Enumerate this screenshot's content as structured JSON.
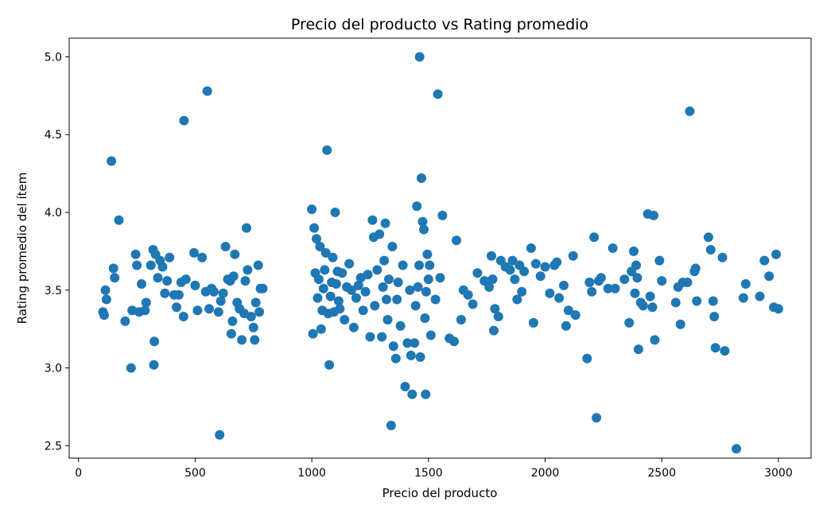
{
  "chart_data": {
    "type": "scatter",
    "title": "Precio del producto vs Rating promedio",
    "xlabel": "Precio del producto",
    "ylabel": "Rating promedio del ítem",
    "xlim": [
      -40,
      3140
    ],
    "ylim": [
      2.42,
      5.12
    ],
    "xticks": [
      0,
      500,
      1000,
      1500,
      2000,
      2500,
      3000
    ],
    "xtick_labels": [
      "0",
      "500",
      "1000",
      "1500",
      "2000",
      "2500",
      "3000"
    ],
    "yticks": [
      2.5,
      3.0,
      3.5,
      4.0,
      4.5,
      5.0
    ],
    "ytick_labels": [
      "2.5",
      "3.0",
      "3.5",
      "4.0",
      "4.5",
      "5.0"
    ],
    "grid": false,
    "marker_color": "#1f77b4",
    "points": [
      [
        141,
        4.33
      ],
      [
        452,
        4.59
      ],
      [
        552,
        4.78
      ],
      [
        173,
        3.95
      ],
      [
        105,
        3.36
      ],
      [
        115,
        3.5
      ],
      [
        110,
        3.34
      ],
      [
        120,
        3.44
      ],
      [
        150,
        3.64
      ],
      [
        155,
        3.58
      ],
      [
        200,
        3.3
      ],
      [
        225,
        3.0
      ],
      [
        230,
        3.37
      ],
      [
        245,
        3.73
      ],
      [
        250,
        3.66
      ],
      [
        260,
        3.36
      ],
      [
        270,
        3.54
      ],
      [
        285,
        3.37
      ],
      [
        290,
        3.42
      ],
      [
        310,
        3.66
      ],
      [
        320,
        3.76
      ],
      [
        330,
        3.73
      ],
      [
        325,
        3.17
      ],
      [
        323,
        3.02
      ],
      [
        340,
        3.58
      ],
      [
        350,
        3.69
      ],
      [
        360,
        3.65
      ],
      [
        370,
        3.48
      ],
      [
        380,
        3.56
      ],
      [
        390,
        3.71
      ],
      [
        410,
        3.47
      ],
      [
        420,
        3.39
      ],
      [
        430,
        3.47
      ],
      [
        440,
        3.55
      ],
      [
        450,
        3.33
      ],
      [
        460,
        3.57
      ],
      [
        495,
        3.74
      ],
      [
        500,
        3.53
      ],
      [
        510,
        3.37
      ],
      [
        530,
        3.71
      ],
      [
        545,
        3.49
      ],
      [
        560,
        3.38
      ],
      [
        570,
        3.51
      ],
      [
        580,
        3.49
      ],
      [
        600,
        3.36
      ],
      [
        605,
        2.57
      ],
      [
        610,
        3.43
      ],
      [
        620,
        3.48
      ],
      [
        630,
        3.78
      ],
      [
        640,
        3.57
      ],
      [
        650,
        3.56
      ],
      [
        655,
        3.22
      ],
      [
        660,
        3.3
      ],
      [
        665,
        3.59
      ],
      [
        670,
        3.73
      ],
      [
        680,
        3.42
      ],
      [
        690,
        3.38
      ],
      [
        700,
        3.18
      ],
      [
        710,
        3.35
      ],
      [
        715,
        3.56
      ],
      [
        720,
        3.9
      ],
      [
        725,
        3.63
      ],
      [
        740,
        3.33
      ],
      [
        750,
        3.26
      ],
      [
        755,
        3.18
      ],
      [
        760,
        3.42
      ],
      [
        770,
        3.66
      ],
      [
        775,
        3.36
      ],
      [
        780,
        3.51
      ],
      [
        790,
        3.51
      ],
      [
        1000,
        4.02
      ],
      [
        1005,
        3.22
      ],
      [
        1010,
        3.9
      ],
      [
        1015,
        3.61
      ],
      [
        1020,
        3.83
      ],
      [
        1025,
        3.45
      ],
      [
        1030,
        3.57
      ],
      [
        1035,
        3.78
      ],
      [
        1040,
        3.25
      ],
      [
        1045,
        3.37
      ],
      [
        1050,
        3.51
      ],
      [
        1055,
        3.63
      ],
      [
        1060,
        3.74
      ],
      [
        1065,
        4.4
      ],
      [
        1070,
        3.35
      ],
      [
        1075,
        3.02
      ],
      [
        1080,
        3.46
      ],
      [
        1085,
        3.55
      ],
      [
        1090,
        3.71
      ],
      [
        1095,
        3.36
      ],
      [
        1100,
        4.0
      ],
      [
        1105,
        3.54
      ],
      [
        1110,
        3.62
      ],
      [
        1115,
        3.43
      ],
      [
        1120,
        3.38
      ],
      [
        1130,
        3.61
      ],
      [
        1140,
        3.31
      ],
      [
        1150,
        3.52
      ],
      [
        1160,
        3.67
      ],
      [
        1170,
        3.5
      ],
      [
        1180,
        3.26
      ],
      [
        1190,
        3.45
      ],
      [
        1200,
        3.53
      ],
      [
        1210,
        3.58
      ],
      [
        1220,
        3.37
      ],
      [
        1230,
        3.49
      ],
      [
        1240,
        3.6
      ],
      [
        1250,
        3.2
      ],
      [
        1260,
        3.95
      ],
      [
        1265,
        3.84
      ],
      [
        1270,
        3.4
      ],
      [
        1280,
        3.63
      ],
      [
        1290,
        3.86
      ],
      [
        1300,
        3.2
      ],
      [
        1305,
        3.52
      ],
      [
        1310,
        3.69
      ],
      [
        1315,
        3.93
      ],
      [
        1320,
        3.44
      ],
      [
        1325,
        3.31
      ],
      [
        1330,
        3.57
      ],
      [
        1340,
        2.63
      ],
      [
        1345,
        3.78
      ],
      [
        1350,
        3.14
      ],
      [
        1360,
        3.06
      ],
      [
        1365,
        3.44
      ],
      [
        1370,
        3.55
      ],
      [
        1380,
        3.27
      ],
      [
        1390,
        3.66
      ],
      [
        1400,
        2.88
      ],
      [
        1410,
        3.16
      ],
      [
        1420,
        3.5
      ],
      [
        1425,
        3.08
      ],
      [
        1430,
        2.83
      ],
      [
        1440,
        3.16
      ],
      [
        1445,
        3.4
      ],
      [
        1450,
        4.04
      ],
      [
        1455,
        3.52
      ],
      [
        1460,
        3.66
      ],
      [
        1462,
        5.0
      ],
      [
        1465,
        3.07
      ],
      [
        1470,
        4.22
      ],
      [
        1475,
        3.94
      ],
      [
        1480,
        3.89
      ],
      [
        1485,
        3.32
      ],
      [
        1488,
        2.83
      ],
      [
        1490,
        3.49
      ],
      [
        1495,
        3.73
      ],
      [
        1500,
        3.57
      ],
      [
        1505,
        3.66
      ],
      [
        1510,
        3.21
      ],
      [
        1530,
        3.44
      ],
      [
        1540,
        4.76
      ],
      [
        1550,
        3.58
      ],
      [
        1560,
        3.98
      ],
      [
        1590,
        3.19
      ],
      [
        1610,
        3.17
      ],
      [
        1620,
        3.82
      ],
      [
        1640,
        3.31
      ],
      [
        1650,
        3.5
      ],
      [
        1670,
        3.47
      ],
      [
        1690,
        3.41
      ],
      [
        1710,
        3.61
      ],
      [
        1740,
        3.56
      ],
      [
        1760,
        3.52
      ],
      [
        1770,
        3.72
      ],
      [
        1775,
        3.57
      ],
      [
        1780,
        3.24
      ],
      [
        1785,
        3.38
      ],
      [
        1800,
        3.33
      ],
      [
        1810,
        3.69
      ],
      [
        1830,
        3.65
      ],
      [
        1850,
        3.63
      ],
      [
        1860,
        3.69
      ],
      [
        1870,
        3.57
      ],
      [
        1880,
        3.44
      ],
      [
        1890,
        3.66
      ],
      [
        1900,
        3.49
      ],
      [
        1910,
        3.62
      ],
      [
        1940,
        3.77
      ],
      [
        1950,
        3.29
      ],
      [
        1960,
        3.67
      ],
      [
        1980,
        3.59
      ],
      [
        2000,
        3.65
      ],
      [
        2020,
        3.48
      ],
      [
        2040,
        3.66
      ],
      [
        2050,
        3.68
      ],
      [
        2060,
        3.45
      ],
      [
        2080,
        3.53
      ],
      [
        2090,
        3.27
      ],
      [
        2100,
        3.37
      ],
      [
        2120,
        3.72
      ],
      [
        2130,
        3.34
      ],
      [
        2180,
        3.06
      ],
      [
        2190,
        3.55
      ],
      [
        2200,
        3.49
      ],
      [
        2210,
        3.84
      ],
      [
        2220,
        2.68
      ],
      [
        2230,
        3.56
      ],
      [
        2240,
        3.58
      ],
      [
        2270,
        3.51
      ],
      [
        2290,
        3.77
      ],
      [
        2300,
        3.51
      ],
      [
        2340,
        3.57
      ],
      [
        2360,
        3.29
      ],
      [
        2370,
        3.62
      ],
      [
        2380,
        3.75
      ],
      [
        2385,
        3.48
      ],
      [
        2390,
        3.66
      ],
      [
        2395,
        3.58
      ],
      [
        2400,
        3.12
      ],
      [
        2410,
        3.42
      ],
      [
        2420,
        3.4
      ],
      [
        2440,
        3.99
      ],
      [
        2450,
        3.46
      ],
      [
        2460,
        3.39
      ],
      [
        2465,
        3.98
      ],
      [
        2470,
        3.18
      ],
      [
        2490,
        3.69
      ],
      [
        2500,
        3.56
      ],
      [
        2560,
        3.42
      ],
      [
        2570,
        3.52
      ],
      [
        2580,
        3.28
      ],
      [
        2590,
        3.55
      ],
      [
        2610,
        3.55
      ],
      [
        2620,
        4.65
      ],
      [
        2640,
        3.62
      ],
      [
        2645,
        3.64
      ],
      [
        2650,
        3.43
      ],
      [
        2700,
        3.84
      ],
      [
        2710,
        3.76
      ],
      [
        2720,
        3.43
      ],
      [
        2725,
        3.33
      ],
      [
        2730,
        3.13
      ],
      [
        2760,
        3.71
      ],
      [
        2770,
        3.11
      ],
      [
        2820,
        2.48
      ],
      [
        2850,
        3.45
      ],
      [
        2860,
        3.54
      ],
      [
        2920,
        3.46
      ],
      [
        2940,
        3.69
      ],
      [
        2960,
        3.59
      ],
      [
        2980,
        3.39
      ],
      [
        2990,
        3.73
      ],
      [
        3000,
        3.38
      ]
    ]
  }
}
